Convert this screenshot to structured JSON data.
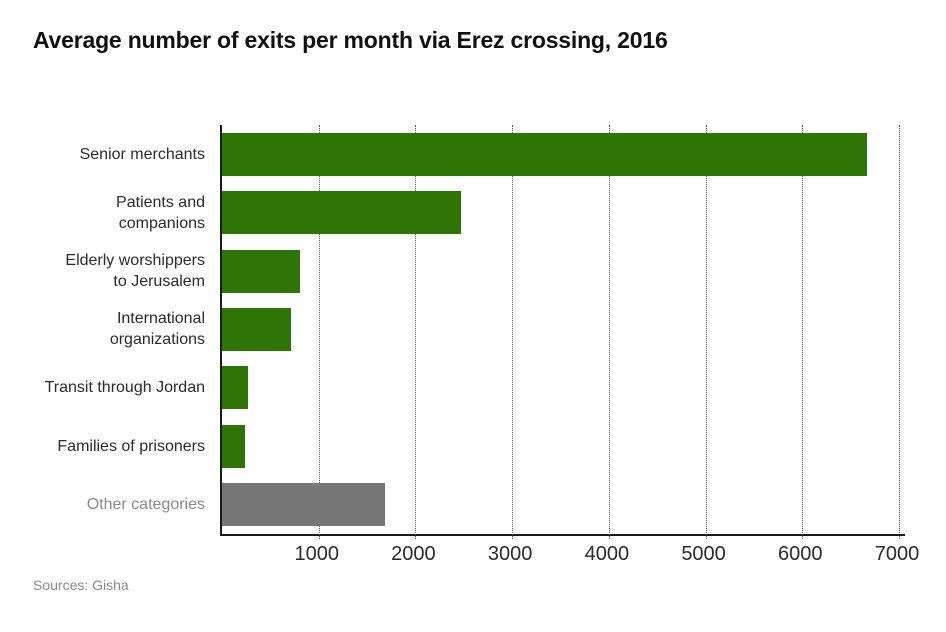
{
  "title": "Average number of exits per month via Erez crossing, 2016",
  "source": "Sources: Gisha",
  "colors": {
    "green": "#2e7506",
    "gray": "#777777",
    "axis": "#1a1a1a",
    "grid": "#555555",
    "label": "#2b2b2b",
    "muted_label": "#8a8a8a"
  },
  "chart_data": {
    "type": "bar",
    "orientation": "horizontal",
    "title": "Average number of exits per month via Erez crossing, 2016",
    "xlabel": "",
    "ylabel": "",
    "xlim": [
      0,
      7000
    ],
    "x_ticks": [
      1000,
      2000,
      3000,
      4000,
      5000,
      6000,
      7000
    ],
    "grid": "dotted-vertical",
    "legend": "none",
    "source": "Sources: Gisha",
    "categories": [
      "Senior merchants",
      "Patients and companions",
      "Elderly worshippers to Jerusalem",
      "International organizations",
      "Transit through Jordan",
      "Families of prisoners",
      "Other categories"
    ],
    "values": [
      6670,
      2470,
      810,
      715,
      265,
      240,
      1685
    ],
    "items": [
      {
        "id": "senior-merchants",
        "label_lines": [
          "Senior merchants"
        ],
        "value": 6670,
        "color": "green",
        "muted": false
      },
      {
        "id": "patients-companions",
        "label_lines": [
          "Patients and",
          "companions"
        ],
        "value": 2470,
        "color": "green",
        "muted": false
      },
      {
        "id": "elderly-worshippers",
        "label_lines": [
          "Elderly worshippers",
          "to Jerusalem"
        ],
        "value": 810,
        "color": "green",
        "muted": false
      },
      {
        "id": "international-orgs",
        "label_lines": [
          "International",
          "organizations"
        ],
        "value": 715,
        "color": "green",
        "muted": false
      },
      {
        "id": "transit-jordan",
        "label_lines": [
          "Transit through Jordan"
        ],
        "value": 265,
        "color": "green",
        "muted": false
      },
      {
        "id": "families-of-prisoners",
        "label_lines": [
          "Families of prisoners"
        ],
        "value": 240,
        "color": "green",
        "muted": false
      },
      {
        "id": "other-categories",
        "label_lines": [
          "Other categories"
        ],
        "value": 1685,
        "color": "gray",
        "muted": true
      }
    ]
  }
}
